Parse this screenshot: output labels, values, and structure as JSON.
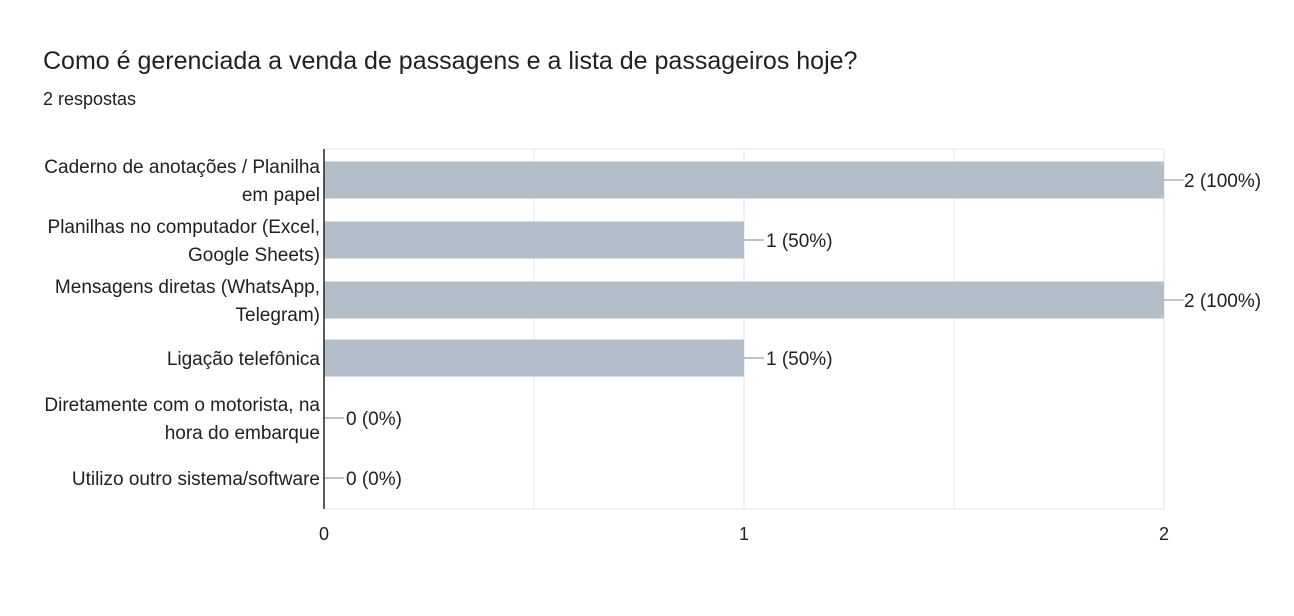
{
  "question": {
    "title": "Como é gerenciada a venda de passagens e a lista de passageiros hoje?",
    "responses": "2 respostas"
  },
  "colors": {
    "bar": "#b2bfca",
    "grid": "#e8eaed",
    "axis": "#333333",
    "text": "#202124",
    "leader": "#9e9e9e"
  },
  "chart_data": {
    "type": "bar",
    "orientation": "horizontal",
    "categories": [
      [
        "Caderno de anotações / Planilha",
        "em papel"
      ],
      [
        "Planilhas no computador (Excel,",
        "Google Sheets)"
      ],
      [
        "Mensagens diretas (WhatsApp,",
        "Telegram)"
      ],
      [
        "Ligação telefônica"
      ],
      [
        "Diretamente com o motorista, na",
        "hora do embarque"
      ],
      [
        "Utilizo outro sistema/software"
      ]
    ],
    "values": [
      2,
      1,
      2,
      1,
      0,
      0
    ],
    "value_labels": [
      "2 (100%)",
      "1 (50%)",
      "2 (100%)",
      "1 (50%)",
      "0 (0%)",
      "0 (0%)"
    ],
    "xlim": [
      0,
      2
    ],
    "x_ticks": [
      "0",
      "1",
      "2"
    ],
    "grid": true,
    "legend": "none"
  }
}
